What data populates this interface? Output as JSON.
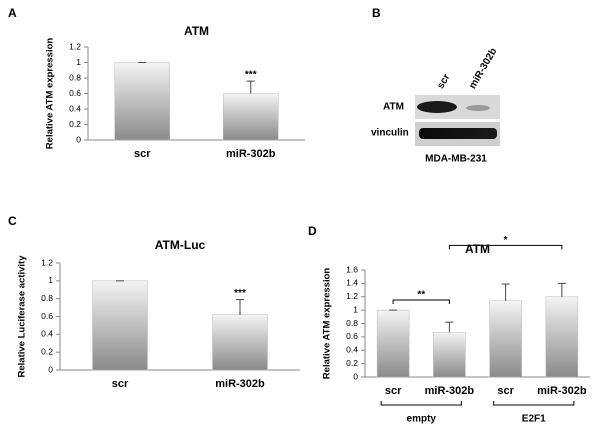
{
  "chart_data": [
    {
      "type": "bar",
      "panel": "A",
      "title": "ATM",
      "ylabel": "Relative ATM expression",
      "categories": [
        "scr",
        "miR-302b"
      ],
      "values": [
        1,
        0.6
      ],
      "errors": [
        0,
        0.16
      ],
      "color": "#8a8a8a",
      "ylim": [
        0,
        1.2
      ],
      "yticks": [
        0,
        0.2,
        0.4,
        0.6,
        0.8,
        1,
        1.2
      ],
      "annotations": [
        {
          "text": "***",
          "category": 1
        }
      ]
    },
    {
      "type": "bar",
      "panel": "C",
      "title": "ATM-Luc",
      "ylabel": "Relative Luciferase activity",
      "categories": [
        "scr",
        "miR-302b"
      ],
      "values": [
        1,
        0.62
      ],
      "errors": [
        0,
        0.17
      ],
      "color": "#8a8a8a",
      "ylim": [
        0,
        1.2
      ],
      "yticks": [
        0,
        0.2,
        0.4,
        0.6,
        0.8,
        1,
        1.2
      ],
      "annotations": [
        {
          "text": "***",
          "category": 1
        }
      ]
    },
    {
      "type": "bar",
      "panel": "D",
      "title": "ATM",
      "ylabel": "Relative ATM expression",
      "categories": [
        "scr",
        "miR-302b",
        "scr",
        "miR-302b"
      ],
      "values": [
        1,
        0.67,
        1.14,
        1.2
      ],
      "errors": [
        0,
        0.15,
        0.25,
        0.2
      ],
      "color": "#8a8a8a",
      "ylim": [
        0,
        1.6
      ],
      "yticks": [
        0,
        0.2,
        0.4,
        0.6,
        0.8,
        1,
        1.2,
        1.4,
        1.6
      ],
      "groups": [
        "empty",
        "E2F1"
      ],
      "brackets": [
        {
          "text": "**",
          "from": 0,
          "to": 1
        },
        {
          "text": "*",
          "from": 1,
          "to": 3
        }
      ]
    }
  ],
  "blot": {
    "panel": "B",
    "lanes": [
      "scr",
      "miR-302b"
    ],
    "rows": [
      "ATM",
      "vinculin"
    ],
    "cell_line": "MDA-MB-231"
  }
}
